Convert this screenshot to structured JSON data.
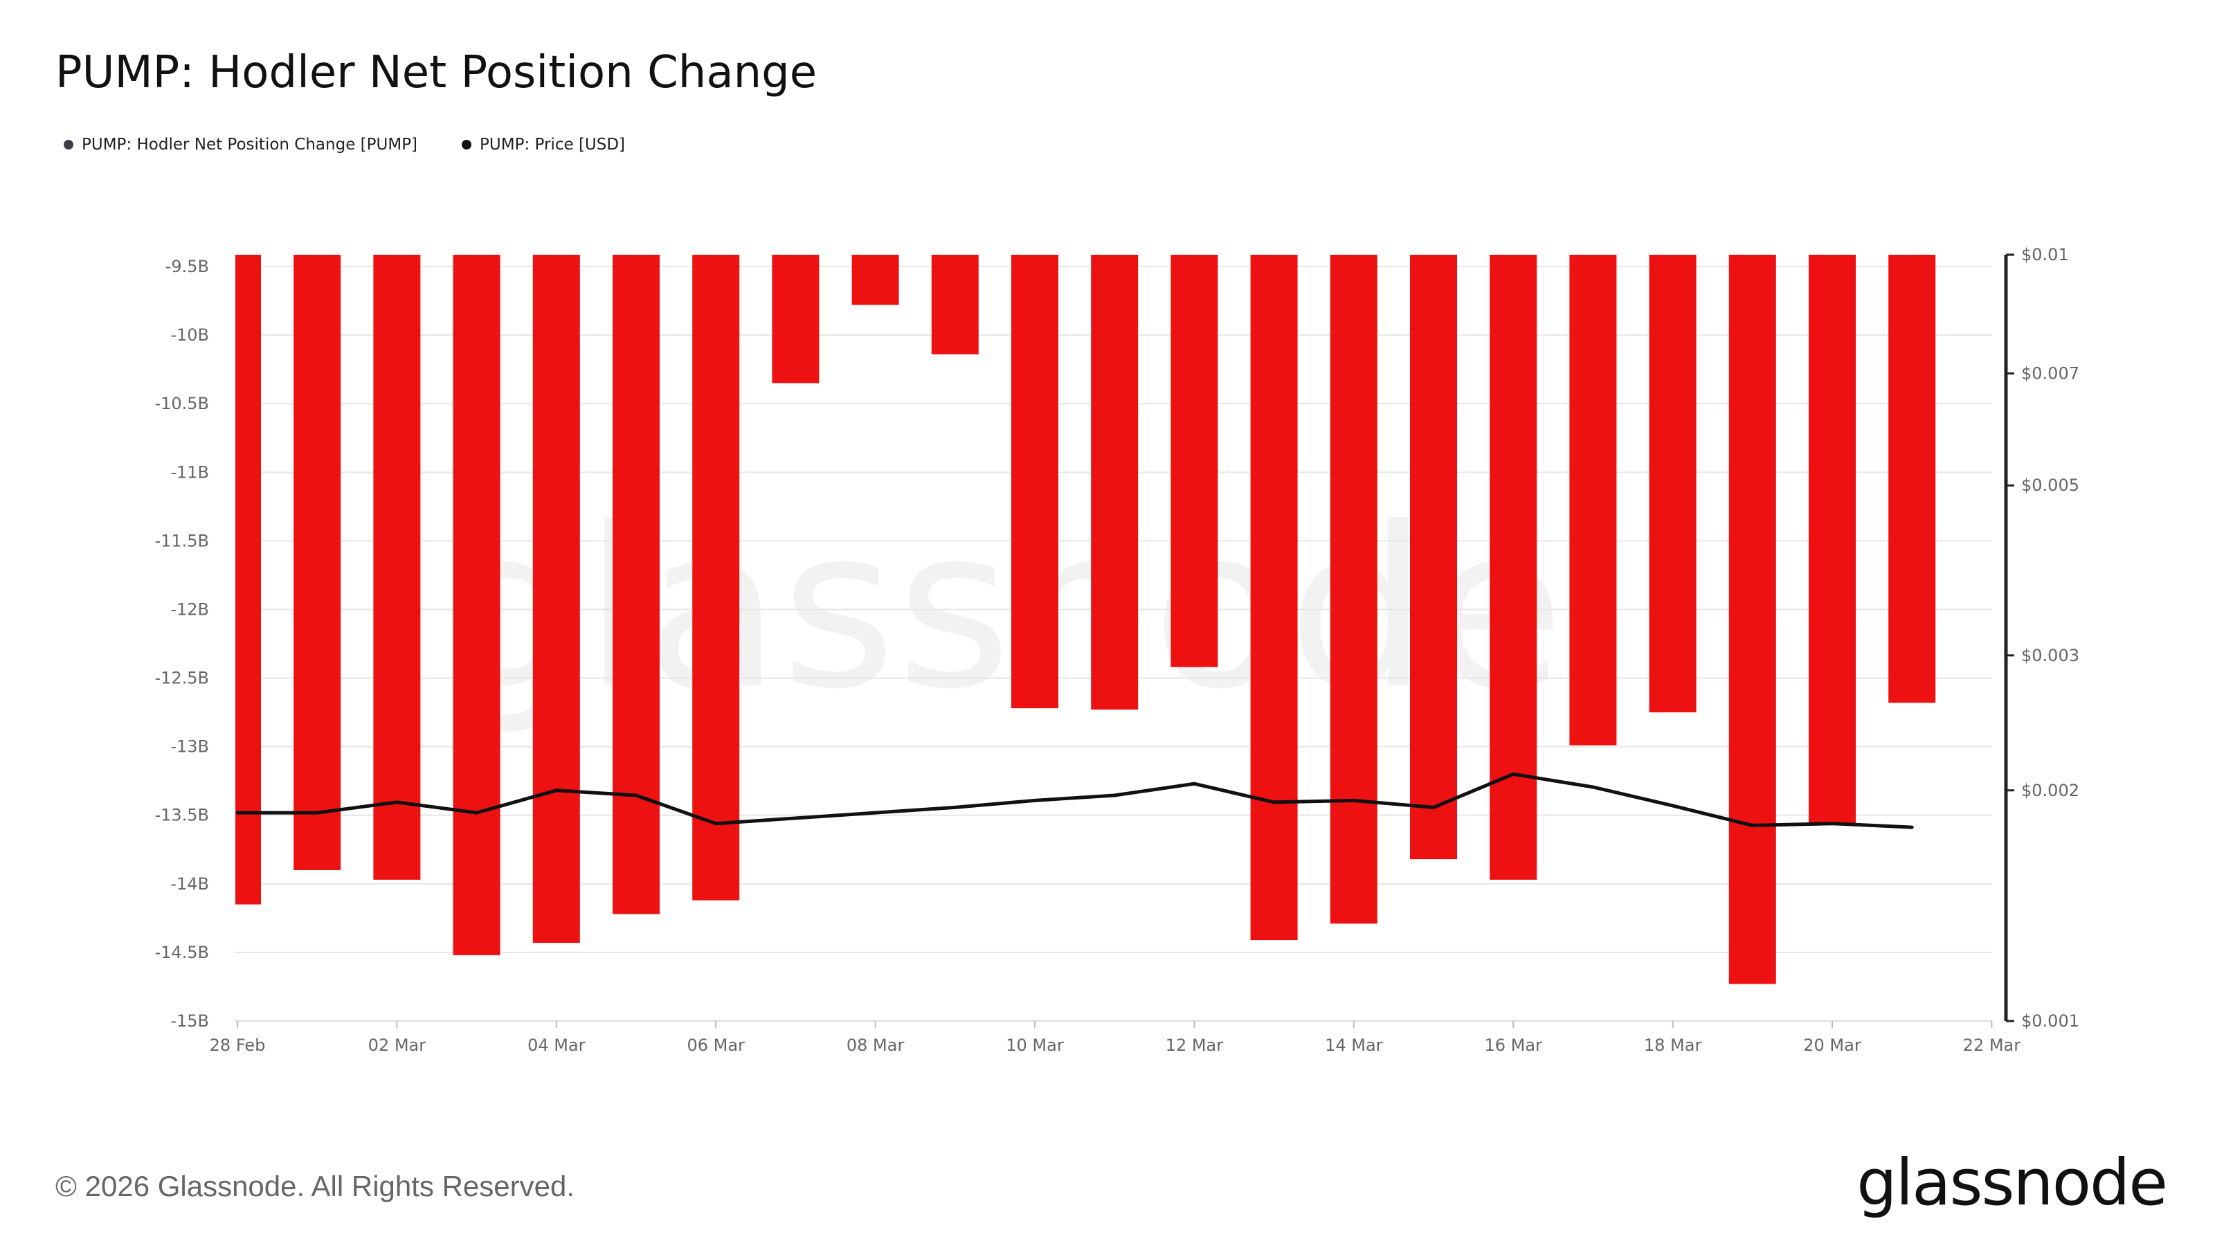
{
  "title": "PUMP: Hodler Net Position Change",
  "legend": [
    {
      "label": "PUMP: Hodler Net Position Change [PUMP]",
      "color": "#3b3f47"
    },
    {
      "label": "PUMP: Price [USD]",
      "color": "#111111"
    }
  ],
  "footer": "© 2026 Glassnode. All Rights Reserved.",
  "brand": "glassnode",
  "watermark": "glassnode",
  "colors": {
    "bar": "#ee1111",
    "line": "#111111",
    "grid": "#e6e6e6"
  },
  "chart_data": {
    "type": "bar",
    "title": "PUMP: Hodler Net Position Change",
    "x_ticks": [
      "28 Feb",
      "02 Mar",
      "04 Mar",
      "06 Mar",
      "08 Mar",
      "10 Mar",
      "12 Mar",
      "14 Mar",
      "16 Mar",
      "18 Mar",
      "20 Mar",
      "22 Mar"
    ],
    "y_left_ticks": [
      "-9.5B",
      "-10B",
      "-10.5B",
      "-11B",
      "-11.5B",
      "-12B",
      "-12.5B",
      "-13B",
      "-13.5B",
      "-14B",
      "-14.5B",
      "-15B"
    ],
    "y_left_range": [
      -15.0,
      -9.5
    ],
    "y_right_ticks": [
      "$0.01",
      "$0.007",
      "$0.005",
      "$0.003",
      "$0.002",
      "$0.001"
    ],
    "y_right_range": [
      0.001,
      0.01
    ],
    "y_right_scale": "log",
    "series": [
      {
        "name": "PUMP: Hodler Net Position Change [PUMP]",
        "type": "bar",
        "dates": [
          "28 Feb",
          "01 Mar",
          "02 Mar",
          "03 Mar",
          "04 Mar",
          "05 Mar",
          "06 Mar",
          "07 Mar",
          "08 Mar",
          "09 Mar",
          "10 Mar",
          "11 Mar",
          "12 Mar",
          "13 Mar",
          "14 Mar",
          "15 Mar",
          "16 Mar",
          "17 Mar",
          "18 Mar",
          "19 Mar",
          "20 Mar",
          "21 Mar"
        ],
        "values": [
          -14.15,
          -13.9,
          -13.97,
          -14.52,
          -14.43,
          -14.22,
          -14.12,
          -10.35,
          -9.78,
          -10.14,
          -12.72,
          -12.73,
          -12.42,
          -14.41,
          -14.29,
          -13.82,
          -13.97,
          -12.99,
          -12.75,
          -14.73,
          -13.56,
          -12.68
        ]
      },
      {
        "name": "PUMP: Price [USD]",
        "type": "line",
        "dates": [
          "28 Feb",
          "01 Mar",
          "02 Mar",
          "03 Mar",
          "04 Mar",
          "05 Mar",
          "06 Mar",
          "08 Mar",
          "09 Mar",
          "10 Mar",
          "11 Mar",
          "12 Mar",
          "13 Mar",
          "14 Mar",
          "15 Mar",
          "16 Mar",
          "17 Mar",
          "18 Mar",
          "19 Mar",
          "20 Mar",
          "21 Mar"
        ],
        "values": [
          0.00187,
          0.00187,
          0.00193,
          0.00187,
          0.002,
          0.00197,
          0.00181,
          0.00187,
          0.0019,
          0.00194,
          0.00197,
          0.00204,
          0.00193,
          0.00194,
          0.0019,
          0.0021,
          0.00202,
          0.00191,
          0.0018,
          0.00181,
          0.00179
        ]
      }
    ]
  }
}
